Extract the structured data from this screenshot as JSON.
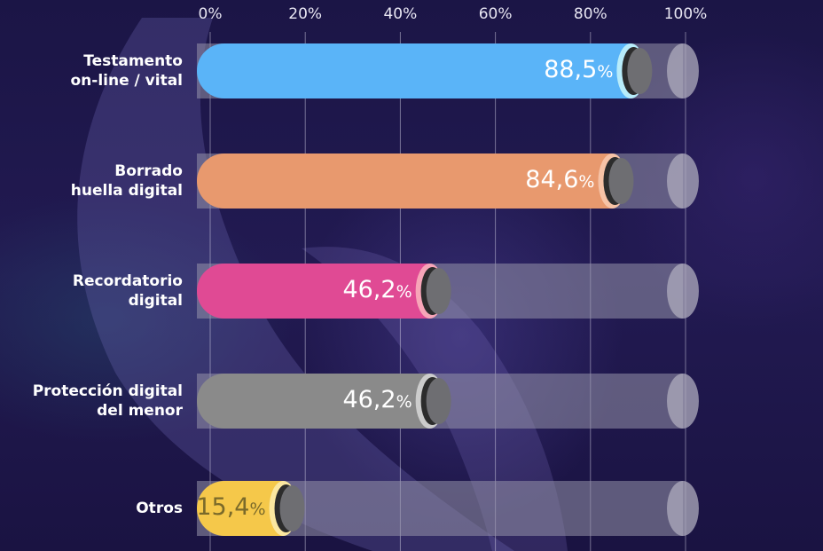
{
  "chart_data": {
    "type": "bar",
    "orientation": "horizontal",
    "xlim": [
      0,
      100
    ],
    "ticks": [
      "0%",
      "20%",
      "40%",
      "60%",
      "80%",
      "100%"
    ],
    "tick_values": [
      0,
      20,
      40,
      60,
      80,
      100
    ],
    "grid": true,
    "categories": [
      [
        "Testamento",
        "on-line / vital"
      ],
      [
        "Borrado",
        "huella digital"
      ],
      [
        "Recordatorio",
        "digital"
      ],
      [
        "Protección digital",
        "del menor"
      ],
      [
        "Otros"
      ]
    ],
    "values": [
      88.5,
      84.6,
      46.2,
      46.2,
      15.4
    ],
    "value_labels": [
      "88,5",
      "84,6",
      "46,2",
      "46,2",
      "15,4"
    ],
    "unit_suffix": "%",
    "bar_colors": [
      "#5ab4f8",
      "#e8996e",
      "#e04a94",
      "#8a8a8a",
      "#f5c84a"
    ],
    "cap_colors": [
      "#b8ecfa",
      "#f6c2a6",
      "#f7a5b8",
      "#cccccc",
      "#fbe7a0"
    ],
    "value_text_colors": [
      "#ffffff",
      "#ffffff",
      "#ffffff",
      "#ffffff",
      "#7a6a2a"
    ],
    "track_color": "#8d8ca0",
    "background_color": "#1a1444"
  }
}
